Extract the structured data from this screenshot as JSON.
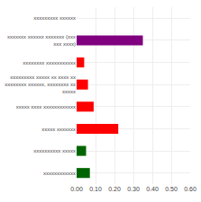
{
  "chart_data": {
    "type": "bar",
    "orientation": "horizontal",
    "categories": [
      "xxxxxxxxx xxxxxx",
      "xxxxxxx xxxxxx xxxxxxx (xxx xxx xxxx)",
      "xxxxxxxx xxxxxxxxxxx",
      "xxxxxxxxx xxxxx xx xxxx xx xxxxxxxx xxxxxx, xxxxxxxx xx xxxxx",
      "xxxxx xxxx xxxxxxxxxxxx",
      "xxxxx xxxxxxx",
      "xxxxxxxxxx xxxxx",
      "xxxxxxxxxxxx"
    ],
    "values": [
      0.0,
      0.35,
      0.04,
      0.06,
      0.09,
      0.22,
      0.05,
      0.07
    ],
    "colors": [
      "#ffffff",
      "#800080",
      "#ff0000",
      "#ff0000",
      "#ff0000",
      "#ff0000",
      "#006400",
      "#006400"
    ],
    "xlim": [
      0.0,
      0.6
    ],
    "xticks": [
      {
        "value": 0.0,
        "label": "0.00"
      },
      {
        "value": 0.1,
        "label": "0.10"
      },
      {
        "value": 0.2,
        "label": "0.20"
      },
      {
        "value": 0.3,
        "label": "0.30"
      },
      {
        "value": 0.4,
        "label": "0.40"
      },
      {
        "value": 0.5,
        "label": "0.50"
      },
      {
        "value": 0.6,
        "label": "0.60"
      }
    ],
    "grid": true
  }
}
